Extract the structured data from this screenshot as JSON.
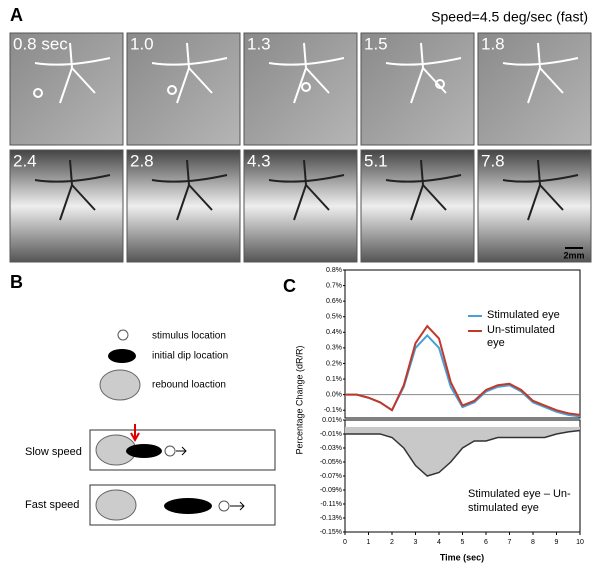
{
  "panel_a": {
    "label": "A",
    "speed": "Speed=4.5 deg/sec (fast)",
    "frames": [
      "0.8 sec",
      "1.0",
      "1.3",
      "1.5",
      "1.8",
      "2.4",
      "2.8",
      "4.3",
      "5.1",
      "7.8"
    ],
    "scale": "2mm"
  },
  "panel_b": {
    "label": "B",
    "legend": [
      "stimulus location",
      "initial dip location",
      "rebound loaction"
    ],
    "rows": [
      "Slow speed",
      "Fast speed"
    ]
  },
  "panel_c": {
    "label": "C"
  },
  "chart_data": [
    {
      "type": "line",
      "ylabel": "Percentage Change (dR/R)",
      "x": [
        0,
        0.5,
        1,
        1.5,
        2,
        2.5,
        3,
        3.5,
        4,
        4.5,
        5,
        5.5,
        6,
        6.5,
        7,
        7.5,
        8,
        8.5,
        9,
        9.5,
        10
      ],
      "series": [
        {
          "name": "Stimulated eye",
          "color": "#4a9fd4",
          "values": [
            0,
            0,
            -0.02,
            -0.05,
            -0.1,
            0.05,
            0.3,
            0.38,
            0.3,
            0.05,
            -0.08,
            -0.05,
            0.02,
            0.05,
            0.06,
            0.02,
            -0.05,
            -0.08,
            -0.11,
            -0.13,
            -0.14
          ]
        },
        {
          "name": "Un-stimulated eye",
          "color": "#c0392b",
          "values": [
            0,
            0,
            -0.02,
            -0.05,
            -0.1,
            0.06,
            0.33,
            0.44,
            0.36,
            0.08,
            -0.07,
            -0.04,
            0.03,
            0.06,
            0.07,
            0.03,
            -0.04,
            -0.07,
            -0.1,
            -0.12,
            -0.13
          ]
        }
      ],
      "xlim": [
        0,
        10
      ],
      "ylim": [
        -0.15,
        0.8
      ],
      "yticks": [
        {
          "value": 0.8,
          "label": "0.8%"
        },
        {
          "value": 0.7,
          "label": "0.7%"
        },
        {
          "value": 0.6,
          "label": "0.6%"
        },
        {
          "value": 0.5,
          "label": "0.5%"
        },
        {
          "value": 0.4,
          "label": "0.4%"
        },
        {
          "value": 0.3,
          "label": "0.3%"
        },
        {
          "value": 0.2,
          "label": "0.2%"
        },
        {
          "value": 0.1,
          "label": "0.1%"
        },
        {
          "value": 0,
          "label": "0.0%"
        },
        {
          "value": -0.1,
          "label": "-0.1%"
        }
      ]
    },
    {
      "type": "area",
      "annotation": "Stimulated eye – Un-stimulated eye",
      "xlabel": "Time (sec)",
      "color": "#c8c8c8",
      "x": [
        0,
        0.5,
        1,
        1.5,
        2,
        2.5,
        3,
        3.5,
        4,
        4.5,
        5,
        5.5,
        6,
        6.5,
        7,
        7.5,
        8,
        8.5,
        9,
        9.5,
        10
      ],
      "values": [
        -0.01,
        -0.01,
        -0.01,
        -0.01,
        -0.015,
        -0.03,
        -0.055,
        -0.07,
        -0.065,
        -0.05,
        -0.03,
        -0.02,
        -0.02,
        -0.015,
        -0.015,
        -0.015,
        -0.015,
        -0.015,
        -0.01,
        -0.007,
        -0.005
      ],
      "xlim": [
        0,
        10
      ],
      "ylim": [
        -0.15,
        0.01
      ],
      "xticks": [
        0,
        1,
        2,
        3,
        4,
        5,
        6,
        7,
        8,
        9,
        10
      ],
      "yticks": [
        {
          "value": 0.01,
          "label": "0.01%"
        },
        {
          "value": -0.01,
          "label": "-0.01%"
        },
        {
          "value": -0.03,
          "label": "-0.03%"
        },
        {
          "value": -0.05,
          "label": "-0.05%"
        },
        {
          "value": -0.07,
          "label": "-0.07%"
        },
        {
          "value": -0.09,
          "label": "-0.09%"
        },
        {
          "value": -0.11,
          "label": "-0.11%"
        },
        {
          "value": -0.13,
          "label": "-0.13%"
        },
        {
          "value": -0.15,
          "label": "-0.15%"
        }
      ]
    }
  ]
}
